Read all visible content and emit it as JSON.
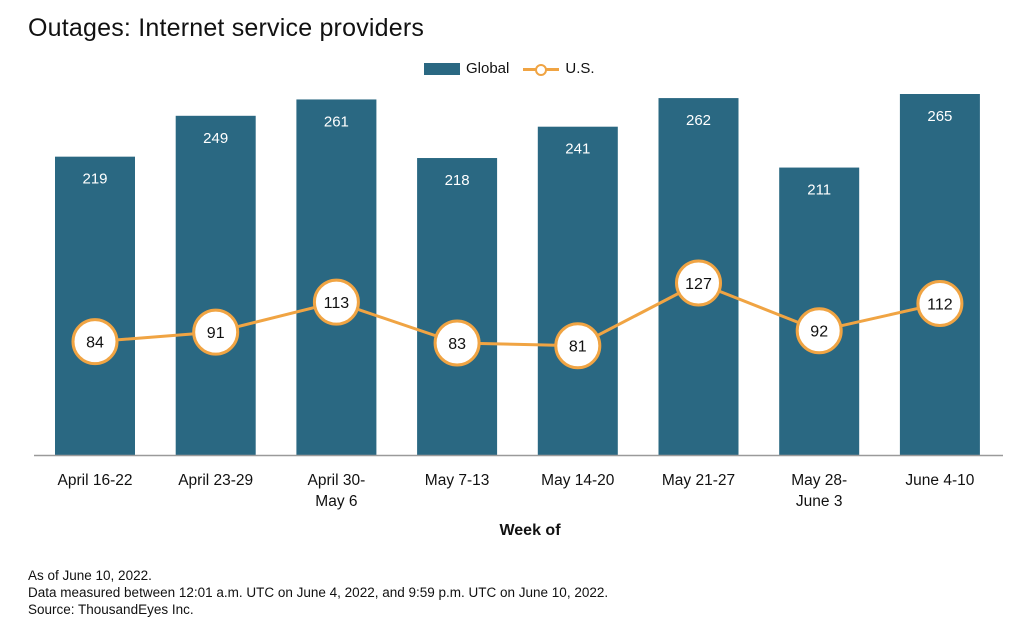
{
  "chart_data": {
    "type": "bar",
    "title": "Outages: Internet service providers",
    "categories": [
      [
        "April 16-22"
      ],
      [
        "April 23-29"
      ],
      [
        "April 30-",
        "May 6"
      ],
      [
        "May 7-13"
      ],
      [
        "May 14-20"
      ],
      [
        "May 21-27"
      ],
      [
        "May 28-",
        "June 3"
      ],
      [
        "June 4-10"
      ]
    ],
    "series": [
      {
        "name": "Global",
        "kind": "bar",
        "color": "#2a6882",
        "values": [
          219,
          249,
          261,
          218,
          241,
          262,
          211,
          265
        ]
      },
      {
        "name": "U.S.",
        "kind": "line",
        "color": "#f0a443",
        "values": [
          84,
          91,
          113,
          83,
          81,
          127,
          92,
          112
        ]
      }
    ],
    "xlabel": "Week of",
    "ylabel": "",
    "ylim": [
      0,
      265
    ],
    "grid": false,
    "legend": "top-center"
  },
  "notes": [
    "As of June 10, 2022.",
    "Data measured between 12:01 a.m. UTC on June 4, 2022, and 9:59 p.m. UTC on June 10, 2022.",
    "Source: ThousandEyes Inc."
  ]
}
